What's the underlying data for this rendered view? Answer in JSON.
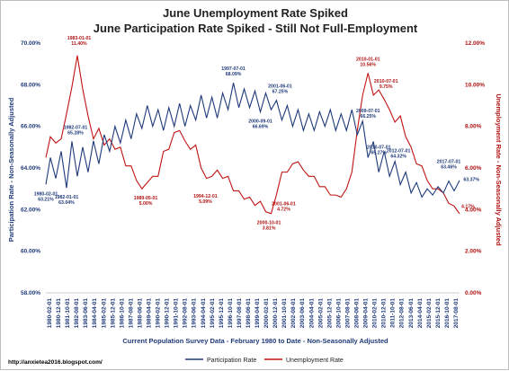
{
  "chart_data": {
    "type": "line",
    "title": "June Unemployment Rate Spiked",
    "subtitle": "June Participation Rate Spiked - Still Not Full-Employment",
    "xlabel": "Current Population Survey Data - February 1980 to Date - Non-Seasonally Adjusted",
    "ylabel_left": "Participation Rate - Non-Seasonally Adjusted",
    "ylabel_right": "Unemployment Rate - Non-Seasonally Adjusted",
    "ylim_left": [
      58,
      70
    ],
    "ylim_right": [
      0,
      12
    ],
    "left_ticks": [
      "58.00%",
      "60.00%",
      "62.00%",
      "64.00%",
      "66.00%",
      "68.00%",
      "70.00%"
    ],
    "right_ticks": [
      "0.00%",
      "2.00%",
      "4.00%",
      "6.00%",
      "8.00%",
      "10.00%",
      "12.00%"
    ],
    "x_ticks": [
      "1980-02-01",
      "1980-12-01",
      "1981-10-01",
      "1982-08-01",
      "1983-06-01",
      "1984-04-01",
      "1985-02-01",
      "1985-12-01",
      "1986-10-01",
      "1987-08-01",
      "1988-06-01",
      "1989-04-01",
      "1990-02-01",
      "1990-12-01",
      "1991-10-01",
      "1992-08-01",
      "1993-06-01",
      "1994-04-01",
      "1995-02-01",
      "1995-12-01",
      "1996-10-01",
      "1997-08-01",
      "1998-06-01",
      "1999-04-01",
      "2000-02-01",
      "2000-12-01",
      "2001-10-01",
      "2002-08-01",
      "2003-06-01",
      "2004-04-01",
      "2005-02-01",
      "2005-12-01",
      "2006-10-01",
      "2007-08-01",
      "2008-06-01",
      "2009-04-01",
      "2010-02-01",
      "2010-12-01",
      "2011-10-01",
      "2012-08-01",
      "2013-06-01",
      "2014-04-01",
      "2015-02-01",
      "2015-12-01",
      "2016-10-01",
      "2017-08-01"
    ],
    "x_range": [
      1980.08,
      2018.5
    ],
    "series": [
      {
        "name": "Participation Rate",
        "axis": "left",
        "color": "#1f3a7a",
        "x": [
          1980.08,
          1980.5,
          1981.0,
          1981.5,
          1982.0,
          1982.5,
          1983.0,
          1983.5,
          1984.0,
          1984.5,
          1985.0,
          1985.5,
          1986.0,
          1986.5,
          1987.0,
          1987.5,
          1988.0,
          1988.5,
          1989.0,
          1989.5,
          1990.0,
          1990.5,
          1991.0,
          1991.5,
          1992.0,
          1992.5,
          1993.0,
          1993.5,
          1994.0,
          1994.5,
          1995.0,
          1995.5,
          1996.0,
          1996.5,
          1997.0,
          1997.5,
          1998.0,
          1998.5,
          1999.0,
          1999.5,
          2000.0,
          2000.5,
          2001.0,
          2001.5,
          2002.0,
          2002.5,
          2003.0,
          2003.5,
          2004.0,
          2004.5,
          2005.0,
          2005.5,
          2006.0,
          2006.5,
          2007.0,
          2007.5,
          2008.0,
          2008.5,
          2009.0,
          2009.5,
          2010.0,
          2010.5,
          2011.0,
          2011.5,
          2012.0,
          2012.5,
          2013.0,
          2013.5,
          2014.0,
          2014.5,
          2015.0,
          2015.5,
          2016.0,
          2016.5,
          2017.0,
          2017.5,
          2018.0,
          2018.5
        ],
        "values": [
          63.21,
          64.5,
          63.5,
          64.8,
          63.04,
          65.28,
          63.6,
          65.0,
          63.8,
          65.3,
          64.2,
          65.6,
          64.8,
          66.0,
          65.2,
          66.3,
          65.4,
          66.6,
          65.9,
          67.0,
          66.0,
          66.8,
          65.8,
          66.9,
          66.0,
          67.1,
          66.0,
          67.0,
          66.3,
          67.5,
          66.4,
          67.4,
          66.4,
          67.6,
          66.8,
          68.09,
          66.9,
          67.8,
          66.9,
          67.7,
          66.69,
          67.6,
          66.8,
          67.25,
          66.3,
          67.0,
          66.0,
          66.8,
          65.8,
          66.6,
          65.8,
          66.7,
          66.0,
          66.8,
          65.8,
          66.6,
          65.8,
          66.8,
          65.6,
          66.25,
          64.5,
          65.27,
          63.8,
          64.8,
          63.6,
          64.32,
          63.2,
          63.8,
          62.8,
          63.3,
          62.6,
          63.0,
          62.7,
          63.1,
          62.8,
          63.37,
          62.9,
          63.4
        ]
      },
      {
        "name": "Unemployment Rate",
        "axis": "right",
        "color": "#c01313",
        "x": [
          1980.08,
          1980.5,
          1981.0,
          1981.5,
          1982.0,
          1982.5,
          1983.0,
          1983.5,
          1984.0,
          1984.5,
          1985.0,
          1985.5,
          1986.0,
          1986.5,
          1987.0,
          1987.5,
          1988.0,
          1988.5,
          1989.0,
          1989.5,
          1990.0,
          1990.5,
          1991.0,
          1991.5,
          1992.0,
          1992.5,
          1993.0,
          1993.5,
          1994.0,
          1994.5,
          1995.0,
          1995.5,
          1996.0,
          1996.5,
          1997.0,
          1997.5,
          1998.0,
          1998.5,
          1999.0,
          1999.5,
          2000.0,
          2000.5,
          2001.0,
          2001.5,
          2002.0,
          2002.5,
          2003.0,
          2003.5,
          2004.0,
          2004.5,
          2005.0,
          2005.5,
          2006.0,
          2006.5,
          2007.0,
          2007.5,
          2008.0,
          2008.5,
          2009.0,
          2009.5,
          2010.0,
          2010.5,
          2011.0,
          2011.5,
          2012.0,
          2012.5,
          2013.0,
          2013.5,
          2014.0,
          2014.5,
          2015.0,
          2015.5,
          2016.0,
          2016.5,
          2017.0,
          2017.5,
          2018.0,
          2018.5
        ],
        "values": [
          6.5,
          7.5,
          7.2,
          7.4,
          8.6,
          9.9,
          11.4,
          9.8,
          8.5,
          7.4,
          7.9,
          7.1,
          7.4,
          6.9,
          7.0,
          6.1,
          6.1,
          5.4,
          5.0,
          5.3,
          5.6,
          5.6,
          6.8,
          6.9,
          7.7,
          7.8,
          7.3,
          6.9,
          7.1,
          6.0,
          5.5,
          5.6,
          5.9,
          5.5,
          5.6,
          4.9,
          4.9,
          4.5,
          4.6,
          4.2,
          4.4,
          3.9,
          3.81,
          4.72,
          5.8,
          5.8,
          6.2,
          6.3,
          5.9,
          5.6,
          5.6,
          5.1,
          5.1,
          4.7,
          4.7,
          4.6,
          5.0,
          5.8,
          7.8,
          9.5,
          10.56,
          9.5,
          9.75,
          9.3,
          8.8,
          8.2,
          8.5,
          7.5,
          7.0,
          6.2,
          6.1,
          5.4,
          5.0,
          5.0,
          4.8,
          4.3,
          4.17,
          3.8
        ]
      }
    ],
    "annotations": [
      {
        "series": "blue",
        "date": "1980-02-01",
        "value": "63.21%",
        "x": 1980.08,
        "y": 63.21,
        "dx": 0,
        "dy": 12
      },
      {
        "series": "blue",
        "date": "1982-01-01",
        "value": "63.04%",
        "x": 1982.0,
        "y": 63.04,
        "dx": 0,
        "dy": 12
      },
      {
        "series": "blue",
        "date": "1982-07-01",
        "value": "65.28%",
        "x": 1982.5,
        "y": 65.28,
        "dx": 4,
        "dy": -14
      },
      {
        "series": "red",
        "date": "1983-01-01",
        "value": "11.40%",
        "x": 1983.0,
        "y": 11.4,
        "dx": 2,
        "dy": -18
      },
      {
        "series": "red",
        "date": "1989-05-01",
        "value": "5.00%",
        "x": 1989.35,
        "y": 5.0,
        "dx": 0,
        "dy": 12
      },
      {
        "series": "red",
        "date": "1994-12-01",
        "value": "5.09%",
        "x": 1994.9,
        "y": 5.09,
        "dx": 0,
        "dy": 12
      },
      {
        "series": "blue",
        "date": "1997-07-01",
        "value": "68.09%",
        "x": 1997.5,
        "y": 68.09,
        "dx": 0,
        "dy": -14
      },
      {
        "series": "blue",
        "date": "2000-09-01",
        "value": "66.69%",
        "x": 2000.0,
        "y": 66.69,
        "dx": 0,
        "dy": 12
      },
      {
        "series": "red",
        "date": "2000-10-01",
        "value": "3.81%",
        "x": 2000.8,
        "y": 3.81,
        "dx": 0,
        "dy": 12
      },
      {
        "series": "blue",
        "date": "2001-06-01",
        "value": "67.25%",
        "x": 2001.5,
        "y": 67.25,
        "dx": 4,
        "dy": -14
      },
      {
        "series": "red",
        "date": "2001-06-01",
        "value": "4.72%",
        "x": 2001.5,
        "y": 4.72,
        "dx": 8,
        "dy": 12
      },
      {
        "series": "red",
        "date": "2010-01-01",
        "value": "10.56%",
        "x": 2010.0,
        "y": 10.56,
        "dx": 0,
        "dy": -14
      },
      {
        "series": "red",
        "date": "2010-07-01",
        "value": "9.75%",
        "x": 2011.0,
        "y": 9.75,
        "dx": 8,
        "dy": -8
      },
      {
        "series": "blue",
        "date": "2009-07-01",
        "value": "66.25%",
        "x": 2009.5,
        "y": 66.25,
        "dx": 6,
        "dy": -10
      },
      {
        "series": "blue",
        "date": "2010-07-01",
        "value": "65.27%",
        "x": 2010.5,
        "y": 65.27,
        "dx": 6,
        "dy": 8
      },
      {
        "series": "blue",
        "date": "2012-07-01",
        "value": "64.32%",
        "x": 2012.5,
        "y": 64.32,
        "dx": 4,
        "dy": -10
      },
      {
        "series": "blue",
        "date": "2017-07-01",
        "value": "63.46%",
        "x": 2017.5,
        "y": 63.46,
        "dx": 0,
        "dy": -18
      },
      {
        "series": "blue",
        "date": "",
        "value": "63.37%",
        "x": 2018.2,
        "y": 63.37,
        "dx": 8,
        "dy": 0
      },
      {
        "series": "red",
        "date": "",
        "value": "4.17%",
        "x": 2018.0,
        "y": 4.17,
        "dx": 8,
        "dy": 2
      }
    ],
    "legend_placement": "bottom-center",
    "grid": false
  },
  "footer": {
    "url": "http://anxietea2016.blogspot.com/"
  }
}
